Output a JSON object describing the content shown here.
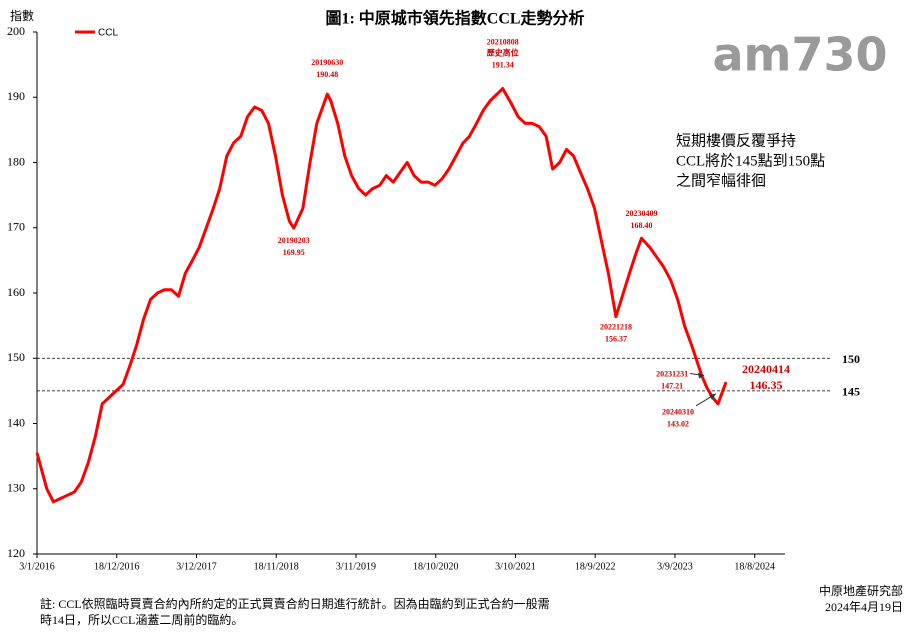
{
  "chart_data": {
    "type": "line",
    "title": "圖1: 中原城市領先指數CCL走勢分析",
    "y_label": "指數",
    "logo": "am730",
    "series": [
      {
        "name": "CCL",
        "color": "#ff0000",
        "x": [
          "2016-01-03",
          "2016-02-15",
          "2016-03-15",
          "2016-04-15",
          "2016-05-15",
          "2016-06-15",
          "2016-07-15",
          "2016-08-15",
          "2016-09-15",
          "2016-10-15",
          "2016-11-15",
          "2016-12-15",
          "2017-01-15",
          "2017-02-15",
          "2017-03-15",
          "2017-04-15",
          "2017-05-15",
          "2017-06-15",
          "2017-07-15",
          "2017-08-15",
          "2017-09-15",
          "2017-10-15",
          "2017-11-15",
          "2017-12-15",
          "2018-01-15",
          "2018-02-15",
          "2018-03-15",
          "2018-04-15",
          "2018-05-15",
          "2018-06-15",
          "2018-07-15",
          "2018-08-15",
          "2018-09-15",
          "2018-10-15",
          "2018-11-15",
          "2018-12-15",
          "2019-01-15",
          "2019-02-03",
          "2019-03-15",
          "2019-04-15",
          "2019-05-15",
          "2019-06-30",
          "2019-07-15",
          "2019-08-15",
          "2019-09-15",
          "2019-10-15",
          "2019-11-15",
          "2019-12-15",
          "2020-01-15",
          "2020-02-15",
          "2020-03-15",
          "2020-04-15",
          "2020-05-15",
          "2020-06-15",
          "2020-07-15",
          "2020-08-15",
          "2020-09-15",
          "2020-10-15",
          "2020-11-15",
          "2020-12-15",
          "2021-01-15",
          "2021-02-15",
          "2021-03-15",
          "2021-04-15",
          "2021-05-15",
          "2021-06-15",
          "2021-07-15",
          "2021-08-08",
          "2021-09-15",
          "2021-10-15",
          "2021-11-15",
          "2021-12-15",
          "2022-01-15",
          "2022-02-15",
          "2022-03-15",
          "2022-04-15",
          "2022-05-15",
          "2022-06-15",
          "2022-07-15",
          "2022-08-15",
          "2022-09-15",
          "2022-10-15",
          "2022-11-15",
          "2022-12-18",
          "2023-01-15",
          "2023-02-15",
          "2023-03-15",
          "2023-04-09",
          "2023-05-15",
          "2023-06-15",
          "2023-07-15",
          "2023-08-15",
          "2023-09-15",
          "2023-10-15",
          "2023-11-15",
          "2023-12-31",
          "2024-01-21",
          "2024-02-15",
          "2024-03-10",
          "2024-04-14"
        ],
        "values": [
          135.5,
          130,
          128,
          128.5,
          129,
          129.5,
          131,
          134,
          138,
          143,
          144,
          145,
          146,
          149,
          152,
          156,
          159,
          160,
          160.5,
          160.5,
          159.5,
          163,
          165,
          167,
          170,
          173,
          176,
          181,
          183,
          184,
          187,
          188.5,
          188,
          186,
          181,
          175,
          171,
          169.95,
          173,
          180,
          186,
          190.48,
          189.5,
          186,
          181,
          178,
          176,
          175,
          176,
          176.5,
          178,
          177,
          178.5,
          180,
          178,
          177,
          177,
          176.5,
          177.5,
          179,
          181,
          183,
          184,
          186,
          188,
          189.5,
          190.5,
          191.34,
          189,
          187,
          186,
          186,
          185.5,
          184,
          179,
          180,
          182,
          181,
          178.5,
          176,
          173,
          168,
          163,
          156.37,
          159.5,
          163,
          166,
          168.4,
          167,
          165.5,
          164,
          162,
          159,
          155,
          152,
          147.21,
          145.5,
          144,
          143.02,
          146.35
        ]
      }
    ],
    "xlim": [
      "2016-01-03",
      "2024-12-29"
    ],
    "xticks": [
      {
        "value": "2016-01-03",
        "label": "3/1/2016"
      },
      {
        "value": "2016-12-18",
        "label": "18/12/2016"
      },
      {
        "value": "2017-12-03",
        "label": "3/12/2017"
      },
      {
        "value": "2018-11-18",
        "label": "18/11/2018"
      },
      {
        "value": "2019-11-03",
        "label": "3/11/2019"
      },
      {
        "value": "2020-10-18",
        "label": "18/10/2020"
      },
      {
        "value": "2021-10-03",
        "label": "3/10/2021"
      },
      {
        "value": "2022-09-18",
        "label": "18/9/2022"
      },
      {
        "value": "2023-09-03",
        "label": "3/9/2023"
      },
      {
        "value": "2024-08-18",
        "label": "18/8/2024"
      }
    ],
    "ylim": [
      120,
      200
    ],
    "yticks": [
      120,
      130,
      140,
      150,
      160,
      170,
      180,
      190,
      200
    ],
    "ref_lines": [
      150,
      145
    ],
    "annotations": [
      {
        "x": "2019-02-03",
        "label": "20190203",
        "value": 169.95
      },
      {
        "x": "2019-06-30",
        "label": "20190630",
        "value": 190.48
      },
      {
        "x": "2021-08-08",
        "label": "20210808",
        "note": "歷史高位",
        "value": 191.34
      },
      {
        "x": "2022-12-18",
        "label": "20221218",
        "value": 156.37
      },
      {
        "x": "2023-04-09",
        "label": "20230409",
        "value": 168.4,
        "value_label": "168.40"
      },
      {
        "x": "2023-12-31",
        "label": "20231231",
        "value": 147.21
      },
      {
        "x": "2024-03-10",
        "label": "20240310",
        "value": 143.02
      },
      {
        "x": "2024-04-14",
        "label": "20240414",
        "value": 146.35
      }
    ],
    "comment": [
      "短期樓價反覆爭持",
      "CCL將於145點到150點",
      "之間窄幅徘徊"
    ],
    "footnote": [
      "註: CCL依照臨時買賣合約內所約定的正式買賣合約日期進行統計。因為由臨約到正式合約一般需",
      "時14日，所以CCL涵蓋二周前的臨約。"
    ],
    "source": [
      "中原地產研究部",
      "2024年4月19日"
    ]
  }
}
